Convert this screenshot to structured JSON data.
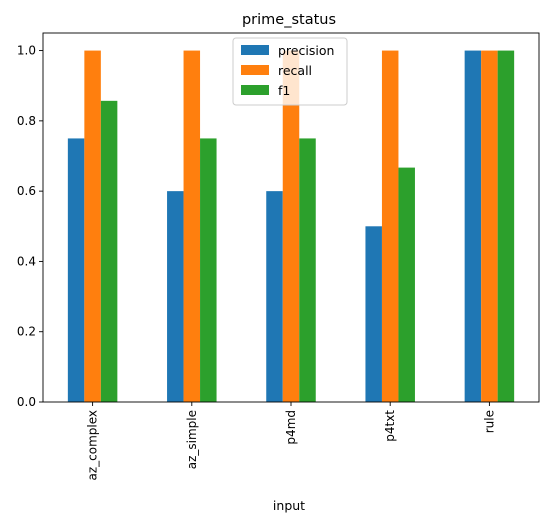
{
  "chart_data": {
    "type": "bar",
    "title": "prime_status",
    "xlabel": "input",
    "ylabel": "",
    "categories": [
      "az_complex",
      "az_simple",
      "p4md",
      "p4txt",
      "rule"
    ],
    "series": [
      {
        "name": "precision",
        "color": "#1f77b4",
        "values": [
          0.75,
          0.6,
          0.6,
          0.5,
          1.0
        ]
      },
      {
        "name": "recall",
        "color": "#ff7f0e",
        "values": [
          1.0,
          1.0,
          1.0,
          1.0,
          1.0
        ]
      },
      {
        "name": "f1",
        "color": "#2ca02c",
        "values": [
          0.857,
          0.75,
          0.75,
          0.667,
          1.0
        ]
      }
    ],
    "ylim": [
      0,
      1.05
    ],
    "yticks": [
      "0.0",
      "0.2",
      "0.4",
      "0.6",
      "0.8",
      "1.0"
    ],
    "ytick_values": [
      0,
      0.2,
      0.4,
      0.6,
      0.8,
      1.0
    ],
    "grid": false,
    "legend_position": "top-center"
  }
}
